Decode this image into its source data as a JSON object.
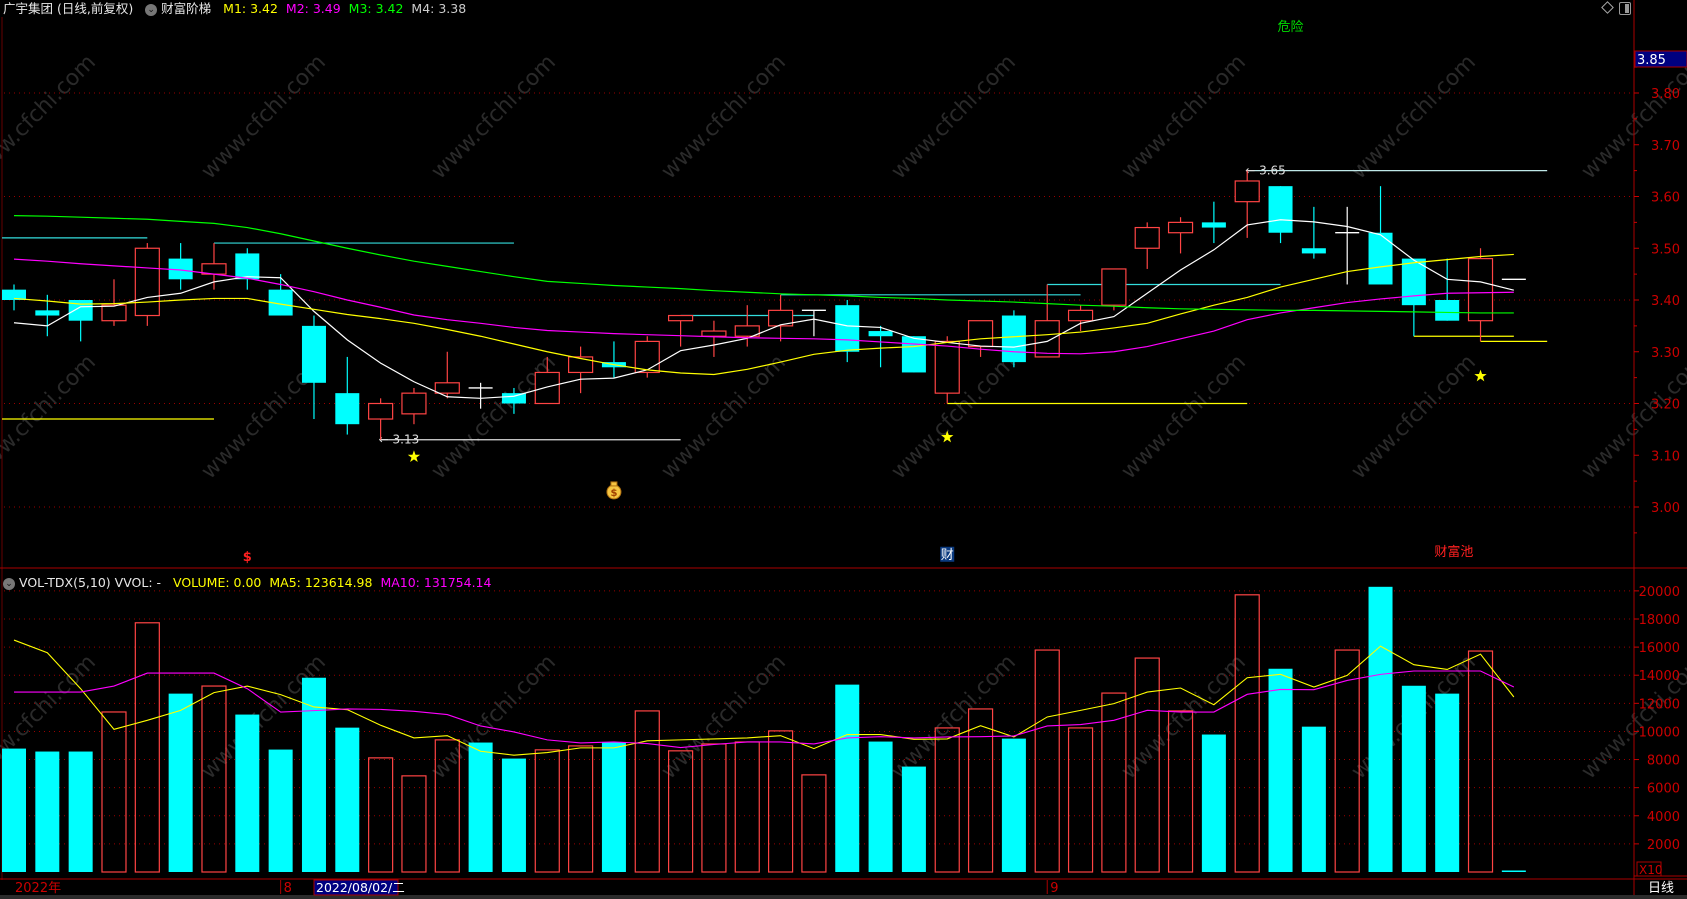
{
  "header": {
    "title": "广宇集团 (日线,前复权)",
    "indicator_icon": "chevron-down-circle-icon",
    "indicator_name": "财富阶梯",
    "m1": "M1: 3.42",
    "m2": "M2: 3.49",
    "m3": "M3: 3.42",
    "m4": "M4: 3.38",
    "top_right_icons": [
      "diamond-icon",
      "panel-toggle-icon"
    ]
  },
  "volume_header": {
    "indicator_icon": "chevron-down-circle-icon",
    "name": "VOL-TDX(5,10) VVOL: -",
    "volume": "VOLUME: 0.00",
    "ma5": "MA5: 123614.98",
    "ma10": "MA10: 131754.14"
  },
  "price_axis": {
    "current_price_label": "3.85",
    "ticks": [
      "3.80",
      "3.70",
      "3.60",
      "3.50",
      "3.40",
      "3.30",
      "3.20",
      "3.10",
      "3.00"
    ]
  },
  "volume_axis": {
    "ticks": [
      "20000",
      "18000",
      "16000",
      "14000",
      "12000",
      "10000",
      "8000",
      "6000",
      "4000",
      "2000"
    ],
    "multiplier": "X10"
  },
  "date_axis": {
    "labels": [
      {
        "text": "2022年",
        "index": 0
      },
      {
        "text": "8",
        "index": 8
      },
      {
        "text": "9",
        "index": 31
      }
    ],
    "cursor_date": "2022/08/02/二",
    "period": "日线"
  },
  "watermark": "www.cfchi.com",
  "colors": {
    "background": "#000000",
    "up": "#ff4444",
    "down": "#00ffff",
    "doji": "#ffffff",
    "grid": "#990000",
    "axis_text": "#cc0000",
    "cursor_bg": "#000080"
  },
  "chart_data": [
    {
      "type": "candlestick",
      "title": "",
      "ylim": [
        2.9,
        3.9
      ],
      "grid": true,
      "ohlc": [
        [
          3.42,
          3.43,
          3.38,
          3.4
        ],
        [
          3.38,
          3.41,
          3.33,
          3.37
        ],
        [
          3.4,
          3.4,
          3.32,
          3.36
        ],
        [
          3.36,
          3.44,
          3.35,
          3.39
        ],
        [
          3.37,
          3.51,
          3.35,
          3.5
        ],
        [
          3.48,
          3.51,
          3.42,
          3.44
        ],
        [
          3.45,
          3.51,
          3.42,
          3.47
        ],
        [
          3.49,
          3.5,
          3.42,
          3.44
        ],
        [
          3.42,
          3.45,
          3.37,
          3.37
        ],
        [
          3.35,
          3.37,
          3.17,
          3.24
        ],
        [
          3.22,
          3.29,
          3.14,
          3.16
        ],
        [
          3.17,
          3.21,
          3.13,
          3.2
        ],
        [
          3.18,
          3.23,
          3.16,
          3.22
        ],
        [
          3.22,
          3.3,
          3.21,
          3.24
        ],
        [
          3.23,
          3.24,
          3.19,
          3.23
        ],
        [
          3.22,
          3.23,
          3.18,
          3.2
        ],
        [
          3.2,
          3.29,
          3.2,
          3.26
        ],
        [
          3.26,
          3.31,
          3.22,
          3.29
        ],
        [
          3.28,
          3.32,
          3.25,
          3.27
        ],
        [
          3.26,
          3.33,
          3.25,
          3.32
        ],
        [
          3.36,
          3.37,
          3.31,
          3.37
        ],
        [
          3.33,
          3.36,
          3.29,
          3.34
        ],
        [
          3.33,
          3.39,
          3.31,
          3.35
        ],
        [
          3.35,
          3.41,
          3.32,
          3.38
        ],
        [
          3.38,
          3.38,
          3.33,
          3.38
        ],
        [
          3.39,
          3.4,
          3.28,
          3.3
        ],
        [
          3.34,
          3.35,
          3.27,
          3.33
        ],
        [
          3.33,
          3.33,
          3.26,
          3.26
        ],
        [
          3.22,
          3.33,
          3.2,
          3.32
        ],
        [
          3.31,
          3.36,
          3.29,
          3.36
        ],
        [
          3.37,
          3.38,
          3.27,
          3.28
        ],
        [
          3.29,
          3.43,
          3.29,
          3.36
        ],
        [
          3.36,
          3.39,
          3.34,
          3.38
        ],
        [
          3.39,
          3.46,
          3.38,
          3.46
        ],
        [
          3.5,
          3.55,
          3.46,
          3.54
        ],
        [
          3.53,
          3.56,
          3.49,
          3.55
        ],
        [
          3.55,
          3.59,
          3.51,
          3.54
        ],
        [
          3.59,
          3.65,
          3.52,
          3.63
        ],
        [
          3.62,
          3.62,
          3.51,
          3.53
        ],
        [
          3.5,
          3.58,
          3.48,
          3.49
        ],
        [
          3.53,
          3.58,
          3.43,
          3.53
        ],
        [
          3.53,
          3.62,
          3.43,
          3.43
        ],
        [
          3.48,
          3.48,
          3.33,
          3.39
        ],
        [
          3.4,
          3.48,
          3.36,
          3.36
        ],
        [
          3.36,
          3.5,
          3.32,
          3.48
        ],
        [
          3.44,
          3.44,
          3.44,
          3.44
        ]
      ],
      "lines": [
        {
          "color": "#ffffff",
          "values": [
            3.356,
            3.35,
            3.387,
            3.388,
            3.405,
            3.413,
            3.435,
            3.445,
            3.443,
            3.378,
            3.323,
            3.278,
            3.242,
            3.213,
            3.21,
            3.214,
            3.232,
            3.247,
            3.249,
            3.265,
            3.302,
            3.313,
            3.326,
            3.352,
            3.363,
            3.35,
            3.347,
            3.326,
            3.318,
            3.311,
            3.309,
            3.32,
            3.355,
            3.368,
            3.413,
            3.458,
            3.497,
            3.545,
            3.555,
            3.551,
            3.542,
            3.526,
            3.477,
            3.44,
            3.435,
            3.419
          ]
        },
        {
          "color": "#ffff00",
          "values": [
            3.403,
            3.398,
            3.392,
            3.393,
            3.396,
            3.4,
            3.403,
            3.403,
            3.392,
            3.382,
            3.372,
            3.364,
            3.355,
            3.343,
            3.33,
            3.315,
            3.3,
            3.287,
            3.275,
            3.265,
            3.259,
            3.256,
            3.266,
            3.28,
            3.295,
            3.303,
            3.307,
            3.31,
            3.318,
            3.325,
            3.329,
            3.333,
            3.338,
            3.346,
            3.355,
            3.373,
            3.39,
            3.405,
            3.425,
            3.44,
            3.455,
            3.464,
            3.472,
            3.478,
            3.484,
            3.488
          ]
        },
        {
          "color": "#ff00ff",
          "values": [
            3.479,
            3.475,
            3.47,
            3.466,
            3.462,
            3.458,
            3.45,
            3.442,
            3.43,
            3.416,
            3.4,
            3.386,
            3.371,
            3.362,
            3.355,
            3.347,
            3.341,
            3.338,
            3.335,
            3.333,
            3.331,
            3.329,
            3.327,
            3.326,
            3.325,
            3.323,
            3.319,
            3.315,
            3.311,
            3.305,
            3.3,
            3.297,
            3.296,
            3.3,
            3.31,
            3.325,
            3.34,
            3.362,
            3.375,
            3.385,
            3.395,
            3.402,
            3.408,
            3.413,
            3.414,
            3.415
          ]
        },
        {
          "color": "#00ff00",
          "values": [
            3.563,
            3.562,
            3.56,
            3.558,
            3.556,
            3.552,
            3.548,
            3.54,
            3.528,
            3.514,
            3.5,
            3.487,
            3.475,
            3.465,
            3.455,
            3.445,
            3.436,
            3.432,
            3.428,
            3.425,
            3.422,
            3.418,
            3.415,
            3.412,
            3.41,
            3.408,
            3.405,
            3.403,
            3.4,
            3.398,
            3.396,
            3.393,
            3.39,
            3.388,
            3.385,
            3.383,
            3.382,
            3.381,
            3.38,
            3.38,
            3.379,
            3.378,
            3.377,
            3.376,
            3.375,
            3.375
          ]
        }
      ],
      "levels": [
        {
          "price": 3.52,
          "from": -0.4,
          "to": 4,
          "color": "#33dddd"
        },
        {
          "price": 3.51,
          "from": 6,
          "to": 15,
          "color": "#33dddd"
        },
        {
          "price": 3.37,
          "from": 20,
          "to": 24,
          "color": "#33dddd"
        },
        {
          "price": 3.41,
          "from": 23,
          "to": 32,
          "color": "#33dddd"
        },
        {
          "price": 3.43,
          "from": 31,
          "to": 38,
          "color": "#33dddd"
        },
        {
          "price": 3.65,
          "from": 37,
          "to": 46,
          "color": "#bfe8e8",
          "label": "3.65"
        },
        {
          "price": 3.17,
          "from": -0.4,
          "to": 6,
          "color": "#ffff00"
        },
        {
          "price": 3.13,
          "from": 11,
          "to": 20,
          "color": "#dddddd",
          "label": "3.13"
        },
        {
          "price": 3.2,
          "from": 28,
          "to": 37,
          "color": "#ffff00"
        },
        {
          "price": 3.33,
          "from": 42,
          "to": 45,
          "color": "#ffff00"
        },
        {
          "price": 3.32,
          "from": 44,
          "to": 46,
          "color": "#ffff00"
        }
      ],
      "markers": [
        {
          "type": "star",
          "index": 12,
          "price": 3.097
        },
        {
          "type": "star",
          "index": 28,
          "price": 3.135
        },
        {
          "type": "star",
          "index": 44,
          "price": 3.253
        },
        {
          "type": "money-bag",
          "index": 18,
          "price": 3.033
        }
      ],
      "annotations": [
        {
          "text": "危险",
          "index": 38.3,
          "price": 3.92,
          "color": "#00dd00"
        },
        {
          "text": "财富池",
          "index": 43.2,
          "price": 2.905,
          "color": "#ff2020"
        },
        {
          "text": "$",
          "index": 7,
          "price": 2.896,
          "color": "#ff2020"
        },
        {
          "text": "财",
          "index": 28,
          "price": 2.9,
          "color": "#ffffff",
          "bg": "#0a3a80"
        }
      ]
    },
    {
      "type": "bar",
      "title": "",
      "ylim": [
        0,
        20000
      ],
      "grid": true,
      "values": [
        8780,
        8570,
        8570,
        11385,
        17730,
        12690,
        13230,
        11200,
        8710,
        13820,
        10270,
        8120,
        6840,
        9400,
        9210,
        8070,
        8690,
        8970,
        9250,
        11460,
        8620,
        9110,
        9250,
        10040,
        6910,
        13330,
        9280,
        7500,
        10250,
        11600,
        9490,
        15790,
        10250,
        12730,
        15220,
        11460,
        9780,
        19720,
        14460,
        10340,
        15790,
        20290,
        13250,
        12690,
        15720,
        0
      ],
      "bar_colors": [
        "down",
        "down",
        "down",
        "up",
        "up",
        "down",
        "up",
        "down",
        "down",
        "down",
        "down",
        "up",
        "up",
        "up",
        "down",
        "down",
        "up",
        "up",
        "down",
        "up",
        "up",
        "up",
        "up",
        "up",
        "up",
        "down",
        "down",
        "down",
        "up",
        "up",
        "down",
        "up",
        "up",
        "up",
        "up",
        "up",
        "down",
        "up",
        "down",
        "down",
        "up",
        "down",
        "down",
        "down",
        "up",
        "down"
      ],
      "series": [
        {
          "name": "MA5",
          "color": "#ffff00",
          "values": [
            16500,
            15600,
            13040,
            10150,
            10790,
            11500,
            12760,
            13230,
            12620,
            11740,
            11550,
            10440,
            9540,
            9700,
            8590,
            8310,
            8500,
            8830,
            8830,
            9330,
            9400,
            9470,
            9540,
            9700,
            8780,
            9780,
            9780,
            9440,
            9470,
            10410,
            9610,
            11030,
            11500,
            11980,
            12800,
            13090,
            11900,
            13820,
            14060,
            13160,
            13990,
            16070,
            14750,
            14410,
            15500,
            12450
          ]
        },
        {
          "name": "MA10",
          "color": "#ff00ff",
          "values": [
            12800,
            12800,
            12800,
            13230,
            14150,
            14150,
            14150,
            13040,
            11380,
            11480,
            11600,
            11570,
            11430,
            11200,
            10390,
            9965,
            9400,
            9180,
            9250,
            9140,
            8850,
            9070,
            9250,
            9250,
            9110,
            9540,
            9630,
            9540,
            9610,
            9630,
            9680,
            10390,
            10490,
            10790,
            11500,
            11380,
            11380,
            12640,
            12990,
            12970,
            13630,
            14060,
            14300,
            14300,
            14300,
            13160
          ]
        }
      ]
    }
  ]
}
